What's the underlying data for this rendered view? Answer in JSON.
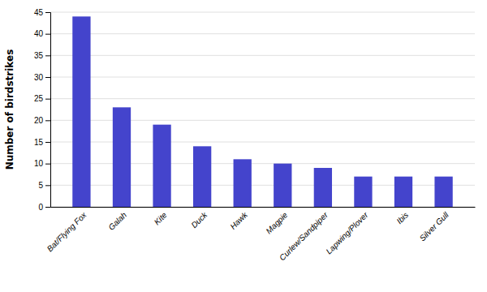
{
  "chart_data": {
    "type": "bar",
    "ylabel": "Number of birdstrikes",
    "categories": [
      "Bat/Flying Fox",
      "Galah",
      "Kite",
      "Duck",
      "Hawk",
      "Magpie",
      "Curlew/Sandpiper",
      "Lapwing/Plover",
      "Ibis",
      "Silver Gull"
    ],
    "values": [
      44,
      23,
      19,
      14,
      11,
      10,
      9,
      7,
      7,
      7
    ],
    "color": "#4444cc",
    "ylim": [
      0,
      45
    ],
    "yticks": [
      0,
      5,
      10,
      15,
      20,
      25,
      30,
      35,
      40,
      45
    ],
    "grid": true
  }
}
